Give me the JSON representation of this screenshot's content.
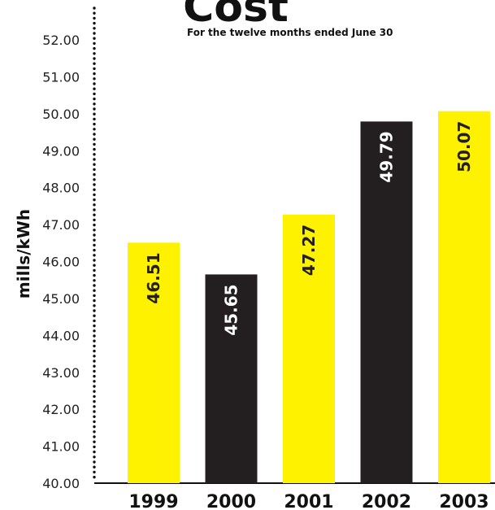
{
  "chart_data": {
    "type": "bar",
    "title": "Cost",
    "subtitle": "For the twelve months ended June 30",
    "xlabel": "",
    "ylabel": "mills/kWh",
    "ylim": [
      40,
      52
    ],
    "yticks": [
      "40.00",
      "41.00",
      "42.00",
      "43.00",
      "44.00",
      "45.00",
      "46.00",
      "47.00",
      "48.00",
      "49.00",
      "50.00",
      "51.00",
      "52.00"
    ],
    "categories": [
      "1999",
      "2000",
      "2001",
      "2002",
      "2003"
    ],
    "values": [
      46.51,
      45.65,
      47.27,
      49.79,
      50.07
    ],
    "data_labels": [
      "46.51",
      "45.65",
      "47.27",
      "49.79",
      "50.07"
    ],
    "grid": false,
    "colors": {
      "yellow": "#fff200",
      "black": "#231f20",
      "bar_sequence": [
        "#fff200",
        "#231f20",
        "#fff200",
        "#231f20",
        "#fff200"
      ],
      "label_on_yellow": "#231f20",
      "label_on_black": "#ffffff"
    }
  }
}
